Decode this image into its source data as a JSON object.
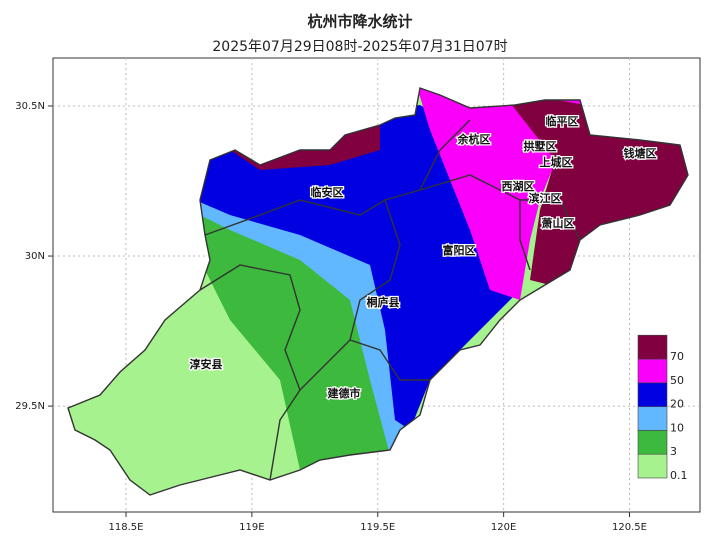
{
  "title": "杭州市降水统计",
  "subtitle": "2025年07月29日08时-2025年07月31日07时",
  "xlim": [
    118.21,
    120.78
  ],
  "ylim": [
    29.147,
    30.66
  ],
  "xticks": [
    {
      "value": 118.5,
      "label": "118.5E"
    },
    {
      "value": 119,
      "label": "119E"
    },
    {
      "value": 119.5,
      "label": "119.5E"
    },
    {
      "value": 120,
      "label": "120E"
    },
    {
      "value": 120.5,
      "label": "120.5E"
    }
  ],
  "yticks": [
    {
      "value": 30.5,
      "label": "30.5N"
    },
    {
      "value": 30,
      "label": "30N"
    },
    {
      "value": 29.5,
      "label": "29.5N"
    }
  ],
  "districts": [
    "余杭区",
    "临平区",
    "拱墅区",
    "钱塘区",
    "上城区",
    "临安区",
    "西湖区",
    "滨江区",
    "萧山区",
    "富阳区",
    "桐庐县",
    "淳安县",
    "建德市"
  ],
  "legend": [
    {
      "value": 0.1,
      "color": "#a6f28f"
    },
    {
      "value": 3,
      "color": "#3dba3d"
    },
    {
      "value": 10,
      "color": "#61b8ff"
    },
    {
      "value": 20,
      "color": "#0000e1"
    },
    {
      "value": 50,
      "color": "#fa00fa"
    },
    {
      "value": 70,
      "color": "#800040"
    }
  ]
}
